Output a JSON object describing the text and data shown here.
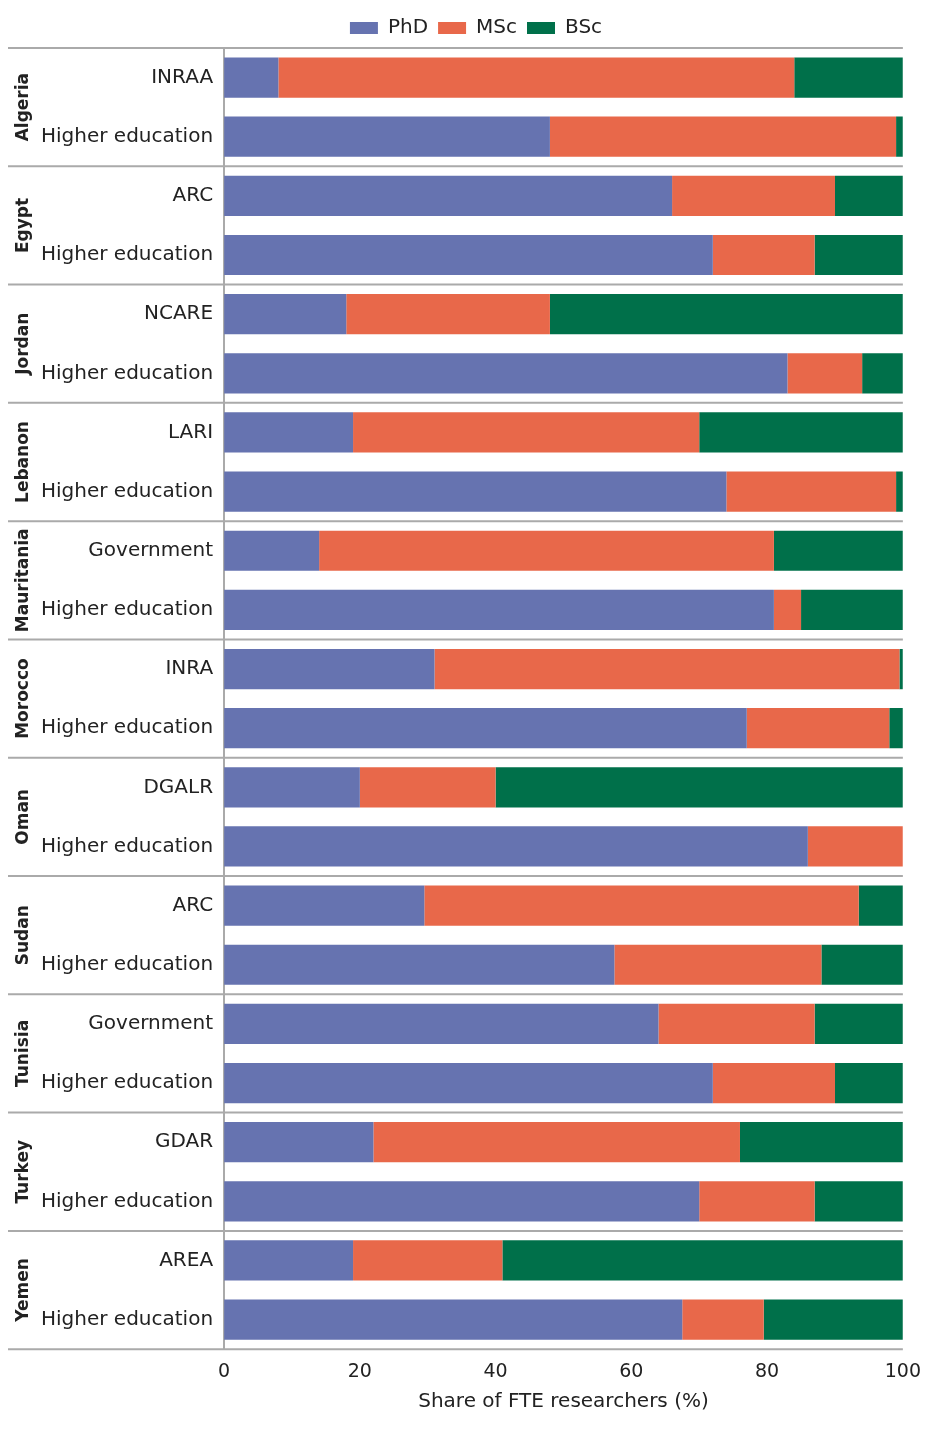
{
  "chart_data": {
    "type": "bar",
    "orientation": "horizontal",
    "stacked": true,
    "legend": "top",
    "xlabel": "Share of FTE researchers (%)",
    "xlim": [
      0,
      100
    ],
    "xticks": [
      0,
      20,
      40,
      60,
      80,
      100
    ],
    "categories": [
      "INRAA",
      "Higher education",
      "ARC",
      "Higher education",
      "NCARE",
      "Higher education",
      "LARI",
      "Higher education",
      "Government",
      "Higher education",
      "INRA",
      "Higher education",
      "DGALR",
      "Higher education",
      "ARC",
      "Higher education",
      "Government",
      "Higher education",
      "GDAR",
      "Higher education",
      "AREA",
      "Higher education"
    ],
    "series": [
      {
        "name": "PhD",
        "color": "#6673b0",
        "values": [
          8,
          48,
          66,
          72,
          18,
          83,
          19,
          74,
          14,
          81,
          31,
          77,
          20,
          86,
          29.5,
          57.5,
          64,
          72,
          22,
          70,
          19,
          67.5
        ]
      },
      {
        "name": "MSc",
        "color": "#e8684a",
        "values": [
          76,
          51,
          24,
          15,
          30,
          11,
          51,
          25,
          67,
          4,
          68.5,
          21,
          20,
          14,
          64,
          30.5,
          23,
          18,
          54,
          17,
          22,
          12
        ]
      },
      {
        "name": "BSc",
        "color": "#00704a",
        "values": [
          16,
          1,
          10,
          13,
          52,
          6,
          30,
          1,
          19,
          15,
          0.5,
          2,
          60,
          0,
          6.5,
          12,
          13,
          10,
          24,
          13,
          59,
          20.5
        ]
      }
    ],
    "annotations": [
      "Algeria",
      "Egypt",
      "Jordan",
      "Lebanon",
      "Mauritania",
      "Morocco",
      "Oman",
      "Sudan",
      "Tunisia",
      "Turkey",
      "Yemen"
    ]
  }
}
